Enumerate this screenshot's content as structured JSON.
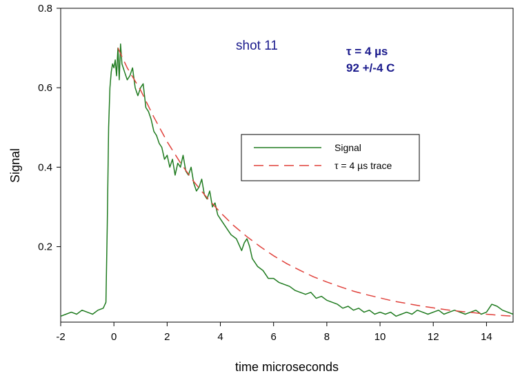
{
  "chart_data": {
    "type": "line",
    "title": "",
    "xlabel": "time microseconds",
    "ylabel": "Signal",
    "xlim": [
      -2,
      15
    ],
    "ylim": [
      0.01,
      0.8
    ],
    "x_ticks": [
      -2,
      0,
      2,
      4,
      6,
      8,
      10,
      12,
      14
    ],
    "x_tick_labels": [
      "-2",
      "0",
      "2",
      "4",
      "6",
      "8",
      "10",
      "12",
      "14"
    ],
    "y_ticks": [
      0.2,
      0.4,
      0.6,
      0.8
    ],
    "y_tick_labels": [
      "0.2",
      "0.4",
      "0.6",
      "0.8"
    ],
    "grid": false,
    "legend_position": "center-right",
    "annotations": {
      "shot": "shot 11",
      "tau": "τ = 4 µs",
      "temp": "92 +/-4 C"
    },
    "series": [
      {
        "name": "Signal",
        "color": "#1e7a1e",
        "style": "solid",
        "x": [
          -2.0,
          -1.8,
          -1.6,
          -1.4,
          -1.2,
          -1.0,
          -0.8,
          -0.6,
          -0.4,
          -0.3,
          -0.25,
          -0.2,
          -0.15,
          -0.1,
          -0.05,
          0.0,
          0.05,
          0.1,
          0.15,
          0.2,
          0.25,
          0.3,
          0.35,
          0.4,
          0.5,
          0.6,
          0.7,
          0.8,
          0.9,
          1.0,
          1.1,
          1.2,
          1.3,
          1.4,
          1.5,
          1.6,
          1.7,
          1.8,
          1.9,
          2.0,
          2.1,
          2.2,
          2.3,
          2.4,
          2.5,
          2.6,
          2.7,
          2.8,
          2.9,
          3.0,
          3.1,
          3.2,
          3.3,
          3.4,
          3.5,
          3.6,
          3.7,
          3.8,
          3.9,
          4.0,
          4.2,
          4.4,
          4.6,
          4.8,
          4.9,
          5.0,
          5.1,
          5.2,
          5.4,
          5.6,
          5.8,
          6.0,
          6.2,
          6.4,
          6.6,
          6.8,
          7.0,
          7.2,
          7.4,
          7.6,
          7.8,
          8.0,
          8.2,
          8.4,
          8.6,
          8.8,
          9.0,
          9.2,
          9.4,
          9.6,
          9.8,
          10.0,
          10.2,
          10.4,
          10.6,
          10.8,
          11.0,
          11.2,
          11.4,
          11.6,
          11.8,
          12.0,
          12.2,
          12.4,
          12.6,
          12.8,
          13.0,
          13.2,
          13.4,
          13.6,
          13.8,
          14.0,
          14.2,
          14.4,
          14.6,
          14.8,
          15.0
        ],
        "values": [
          0.025,
          0.03,
          0.035,
          0.03,
          0.04,
          0.035,
          0.03,
          0.04,
          0.045,
          0.06,
          0.25,
          0.5,
          0.6,
          0.64,
          0.66,
          0.65,
          0.67,
          0.63,
          0.7,
          0.62,
          0.71,
          0.66,
          0.65,
          0.64,
          0.62,
          0.63,
          0.65,
          0.6,
          0.58,
          0.6,
          0.61,
          0.55,
          0.54,
          0.52,
          0.49,
          0.48,
          0.46,
          0.45,
          0.42,
          0.43,
          0.4,
          0.42,
          0.38,
          0.41,
          0.4,
          0.43,
          0.39,
          0.38,
          0.4,
          0.36,
          0.34,
          0.35,
          0.37,
          0.33,
          0.32,
          0.34,
          0.3,
          0.31,
          0.28,
          0.27,
          0.25,
          0.23,
          0.22,
          0.19,
          0.21,
          0.22,
          0.2,
          0.17,
          0.15,
          0.14,
          0.12,
          0.12,
          0.11,
          0.105,
          0.1,
          0.09,
          0.085,
          0.08,
          0.085,
          0.07,
          0.075,
          0.065,
          0.06,
          0.055,
          0.045,
          0.05,
          0.04,
          0.045,
          0.035,
          0.04,
          0.03,
          0.035,
          0.03,
          0.035,
          0.025,
          0.03,
          0.035,
          0.03,
          0.04,
          0.035,
          0.03,
          0.035,
          0.04,
          0.03,
          0.035,
          0.04,
          0.035,
          0.03,
          0.035,
          0.04,
          0.03,
          0.035,
          0.055,
          0.05,
          0.04,
          0.035,
          0.03
        ]
      },
      {
        "name": "τ = 4 µs trace",
        "color": "#e0403a",
        "style": "dashed",
        "x": [
          0.15,
          0.5,
          1.0,
          1.5,
          2.0,
          2.5,
          3.0,
          3.5,
          4.0,
          4.5,
          5.0,
          5.5,
          6.0,
          6.5,
          7.0,
          7.5,
          8.0,
          8.5,
          9.0,
          9.5,
          10.0,
          10.5,
          11.0,
          11.5,
          12.0,
          12.5,
          13.0,
          13.5,
          14.0,
          14.5,
          15.0
        ],
        "values": [
          0.7,
          0.65,
          0.594,
          0.526,
          0.464,
          0.411,
          0.364,
          0.323,
          0.286,
          0.253,
          0.225,
          0.2,
          0.177,
          0.157,
          0.14,
          0.124,
          0.111,
          0.099,
          0.088,
          0.079,
          0.071,
          0.063,
          0.057,
          0.051,
          0.046,
          0.041,
          0.037,
          0.034,
          0.03,
          0.027,
          0.025
        ]
      }
    ]
  }
}
